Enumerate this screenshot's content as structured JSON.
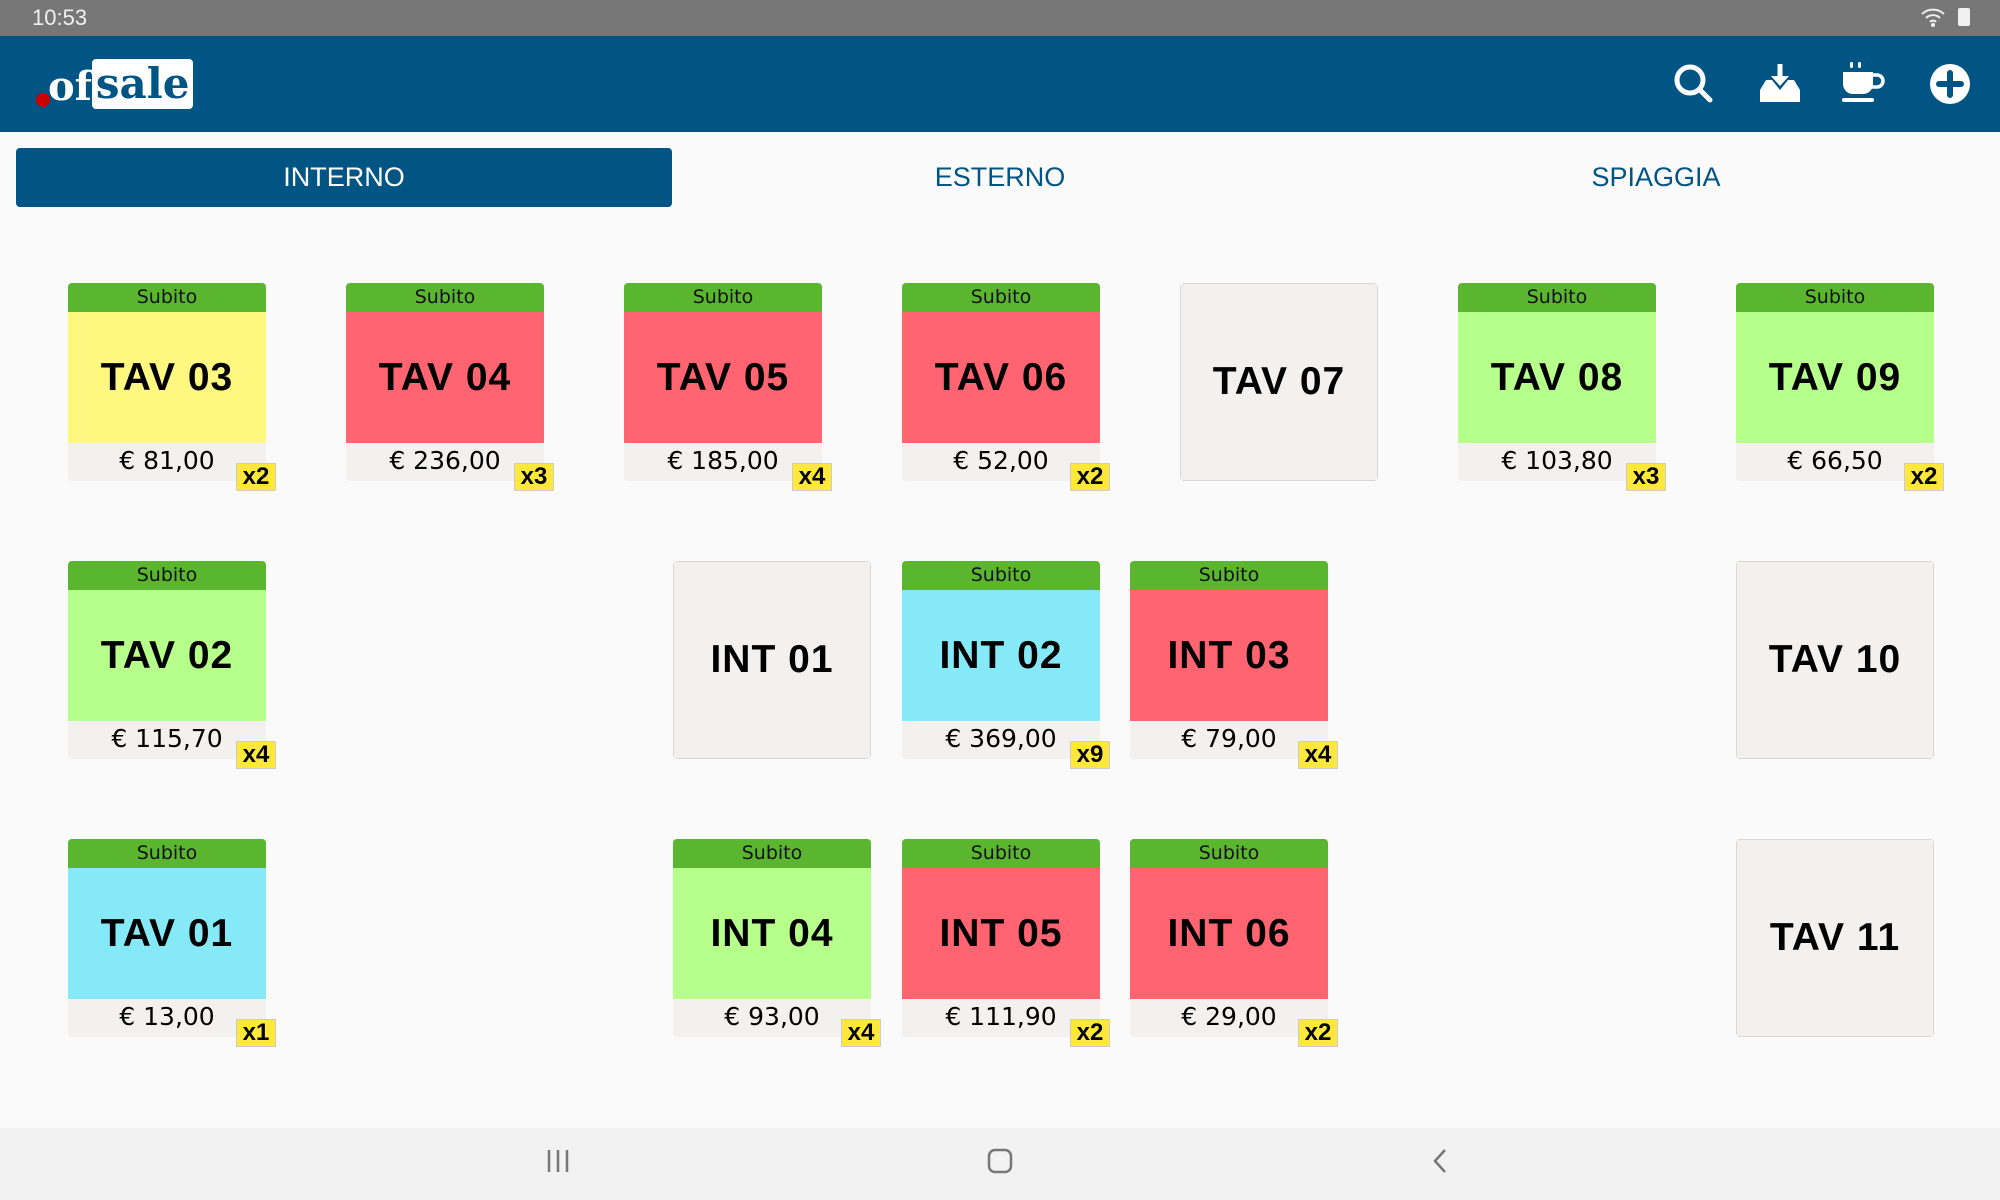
{
  "status_bar": {
    "time": "10:53"
  },
  "header": {
    "logo_text": "ofsale",
    "icons": [
      "search-icon",
      "inbox-download-icon",
      "coffee-cup-icon",
      "plus-circle-icon"
    ]
  },
  "tabs": [
    {
      "label": "INTERNO",
      "active": true
    },
    {
      "label": "ESTERNO",
      "active": false
    },
    {
      "label": "SPIAGGIA",
      "active": false
    }
  ],
  "colors": {
    "header": "#005584",
    "status_green": "#5ab52f",
    "badge": "#ffe83b"
  },
  "tiles": [
    {
      "name": "TAV 03",
      "status": "Subito",
      "price": "€ 81,00",
      "covers": "x2",
      "color": "#fff880"
    },
    {
      "name": "TAV 04",
      "status": "Subito",
      "price": "€ 236,00",
      "covers": "x3",
      "color": "#ff6470"
    },
    {
      "name": "TAV 05",
      "status": "Subito",
      "price": "€ 185,00",
      "covers": "x4",
      "color": "#ff6470"
    },
    {
      "name": "TAV 06",
      "status": "Subito",
      "price": "€ 52,00",
      "covers": "x2",
      "color": "#ff6470"
    },
    {
      "name": "TAV 07",
      "color": "#f2f1f0"
    },
    {
      "name": "TAV 08",
      "status": "Subito",
      "price": "€ 103,80",
      "covers": "x3",
      "color": "#b5ff8a"
    },
    {
      "name": "TAV 09",
      "status": "Subito",
      "price": "€ 66,50",
      "covers": "x2",
      "color": "#b5ff8a"
    },
    {
      "name": "TAV 02",
      "status": "Subito",
      "price": "€ 115,70",
      "covers": "x4",
      "color": "#b5ff8a"
    },
    {
      "name": "INT 01",
      "color": "#f2f1f0"
    },
    {
      "name": "INT 02",
      "status": "Subito",
      "price": "€ 369,00",
      "covers": "x9",
      "color": "#85e9f7"
    },
    {
      "name": "INT 03",
      "status": "Subito",
      "price": "€ 79,00",
      "covers": "x4",
      "color": "#ff6470"
    },
    {
      "name": "TAV 10",
      "color": "#f2f1f0"
    },
    {
      "name": "TAV 01",
      "status": "Subito",
      "price": "€ 13,00",
      "covers": "x1",
      "color": "#85e9f7"
    },
    {
      "name": "INT 04",
      "status": "Subito",
      "price": "€ 93,00",
      "covers": "x4",
      "color": "#b5ff8a"
    },
    {
      "name": "INT 05",
      "status": "Subito",
      "price": "€ 111,90",
      "covers": "x2",
      "color": "#ff6470"
    },
    {
      "name": "INT 06",
      "status": "Subito",
      "price": "€ 29,00",
      "covers": "x2",
      "color": "#ff6470"
    },
    {
      "name": "TAV 11",
      "color": "#f2f1f0"
    }
  ]
}
